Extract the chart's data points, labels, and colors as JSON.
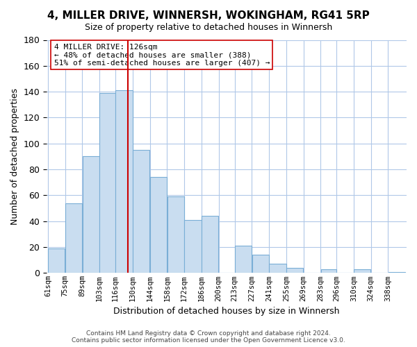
{
  "title": "4, MILLER DRIVE, WINNERSH, WOKINGHAM, RG41 5RP",
  "subtitle": "Size of property relative to detached houses in Winnersh",
  "xlabel": "Distribution of detached houses by size in Winnersh",
  "ylabel": "Number of detached properties",
  "bar_color": "#c9ddf0",
  "bar_edge_color": "#7aaed6",
  "bin_labels": [
    "61sqm",
    "75sqm",
    "89sqm",
    "103sqm",
    "116sqm",
    "130sqm",
    "144sqm",
    "158sqm",
    "172sqm",
    "186sqm",
    "200sqm",
    "213sqm",
    "227sqm",
    "241sqm",
    "255sqm",
    "269sqm",
    "283sqm",
    "296sqm",
    "310sqm",
    "324sqm",
    "338sqm"
  ],
  "bar_heights": [
    19,
    54,
    90,
    139,
    141,
    95,
    74,
    59,
    41,
    44,
    0,
    21,
    14,
    7,
    4,
    0,
    3,
    0,
    3,
    0,
    1
  ],
  "vline_x": 126,
  "vline_color": "#cc0000",
  "ylim": [
    0,
    180
  ],
  "yticks": [
    0,
    20,
    40,
    60,
    80,
    100,
    120,
    140,
    160,
    180
  ],
  "annotation_box_text": "4 MILLER DRIVE: 126sqm\n← 48% of detached houses are smaller (388)\n51% of semi-detached houses are larger (407) →",
  "footer_line1": "Contains HM Land Registry data © Crown copyright and database right 2024.",
  "footer_line2": "Contains public sector information licensed under the Open Government Licence v3.0.",
  "background_color": "#ffffff",
  "grid_color": "#b0c8e8",
  "bin_edges": [
    61,
    75,
    89,
    103,
    116,
    130,
    144,
    158,
    172,
    186,
    200,
    213,
    227,
    241,
    255,
    269,
    283,
    296,
    310,
    324,
    338,
    352
  ]
}
